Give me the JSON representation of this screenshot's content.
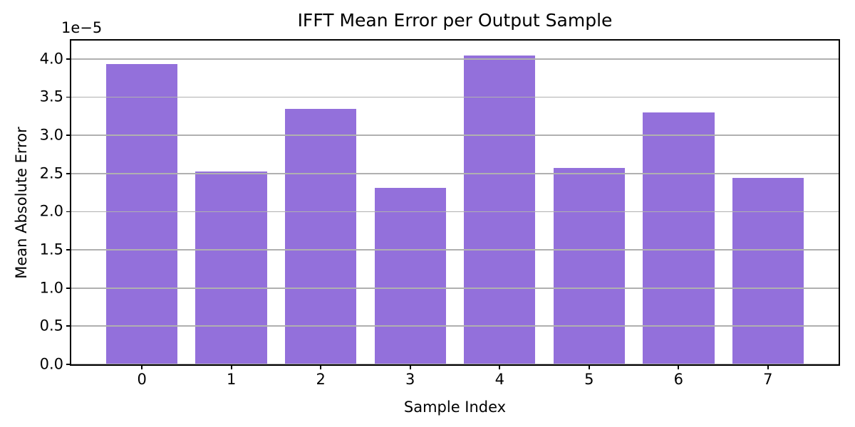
{
  "chart_data": {
    "type": "bar",
    "title": "IFFT Mean Error per Output Sample",
    "xlabel": "Sample Index",
    "ylabel": "Mean Absolute Error",
    "y_offset_label": "1e−5",
    "categories": [
      "0",
      "1",
      "2",
      "3",
      "4",
      "5",
      "6",
      "7"
    ],
    "values": [
      3.93e-05,
      2.53e-05,
      3.35e-05,
      2.31e-05,
      4.04e-05,
      2.57e-05,
      3.3e-05,
      2.44e-05
    ],
    "display_scale": 1e-05,
    "ylim": [
      0,
      4.24e-05
    ],
    "xlim": [
      -0.79,
      7.79
    ],
    "bar_width": 0.8,
    "yticks": [
      {
        "value": 0.0,
        "label": "0.0"
      },
      {
        "value": 0.5,
        "label": "0.5"
      },
      {
        "value": 1.0,
        "label": "1.0"
      },
      {
        "value": 1.5,
        "label": "1.5"
      },
      {
        "value": 2.0,
        "label": "2.0"
      },
      {
        "value": 2.5,
        "label": "2.5"
      },
      {
        "value": 3.0,
        "label": "3.0"
      },
      {
        "value": 3.5,
        "label": "3.5"
      },
      {
        "value": 4.0,
        "label": "4.0"
      }
    ],
    "grid": true,
    "grid_on_top_of_bars": true,
    "legend": null,
    "colors": {
      "bar": "#9370DB",
      "grid": "#b0b0b0",
      "axis": "#000000",
      "text": "#000000",
      "background": "#ffffff"
    }
  }
}
